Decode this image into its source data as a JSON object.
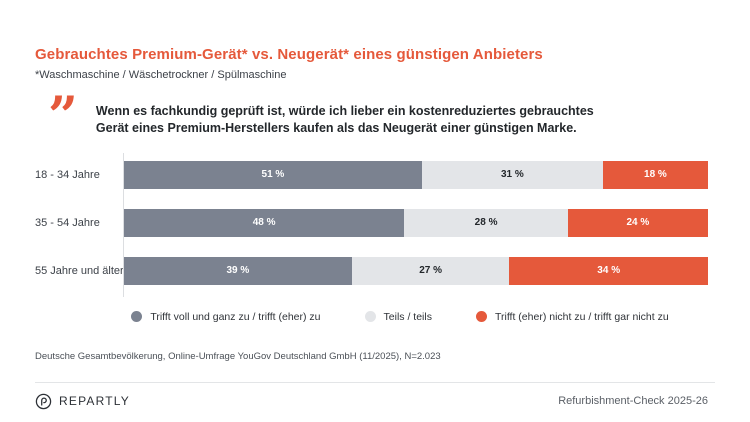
{
  "header": {
    "title": "Gebrauchtes Premium-Gerät* vs. Neugerät* eines günstigen Anbieters",
    "subtitle": "*Waschmaschine / Wäschetrockner / Spülmaschine"
  },
  "quote": {
    "icon_glyph": "”",
    "text": "Wenn es fachkundig geprüft ist, würde ich lieber ein kostenreduziertes gebrauchtes Gerät eines Premium-Herstellers kaufen als das Neugerät einer günstigen Marke."
  },
  "chart_data": {
    "type": "bar",
    "orientation": "horizontal",
    "stacked": true,
    "unit": "%",
    "xlim": [
      0,
      100
    ],
    "grid": false,
    "legend_position": "bottom",
    "value_labels": true,
    "value_label_format": "{v} %",
    "categories": [
      "18 - 34 Jahre",
      "35 - 54 Jahre",
      "55 Jahre und älter"
    ],
    "series": [
      {
        "name": "Trifft voll und ganz zu / trifft (eher) zu",
        "color": "#7B8290",
        "label_color": "#ffffff",
        "values": [
          51,
          48,
          39
        ]
      },
      {
        "name": "Teils / teils",
        "color": "#E3E5E8",
        "label_color": "#23272B",
        "values": [
          31,
          28,
          27
        ]
      },
      {
        "name": "Trifft (eher) nicht zu / trifft gar nicht zu",
        "color": "#E5593B",
        "label_color": "#ffffff",
        "values": [
          18,
          24,
          34
        ]
      }
    ]
  },
  "source": "Deutsche Gesamtbevölkerung, Online-Umfrage YouGov Deutschland GmbH (11/2025), N=2.023",
  "footer": {
    "brand": "REPARTLY",
    "edition": "Refurbishment-Check 2025-26"
  },
  "colors": {
    "accent_orange": "#E5593B",
    "dark_gray": "#7B8290",
    "light_gray": "#E3E5E8",
    "divider": "#E3E5E7"
  }
}
